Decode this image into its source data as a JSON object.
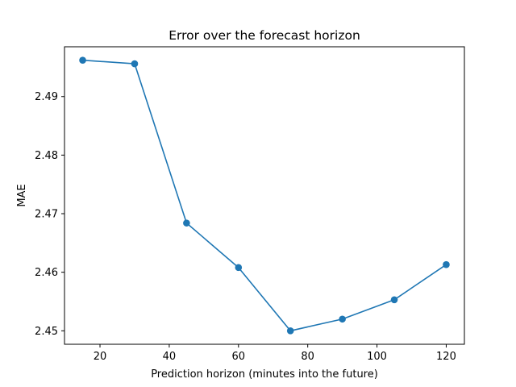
{
  "chart_data": {
    "type": "line",
    "title": "Error over the forecast horizon",
    "xlabel": "Prediction horizon (minutes into the future)",
    "ylabel": "MAE",
    "x": [
      15,
      30,
      45,
      60,
      75,
      90,
      105,
      120
    ],
    "series": [
      {
        "values": [
          2.4962,
          2.4956,
          2.4684,
          2.4608,
          2.45,
          2.452,
          2.4553,
          2.4613
        ],
        "color": "#1f77b4"
      }
    ],
    "xlim": [
      9.75,
      125.25
    ],
    "ylim": [
      2.4477,
      2.4985
    ],
    "xticks": [
      20,
      40,
      60,
      80,
      100,
      120
    ],
    "yticks": [
      2.45,
      2.46,
      2.47,
      2.48,
      2.49
    ],
    "ytick_labels": [
      "2.45",
      "2.46",
      "2.47",
      "2.48",
      "2.49"
    ],
    "grid": false,
    "legend": "none",
    "marker": "circle"
  }
}
